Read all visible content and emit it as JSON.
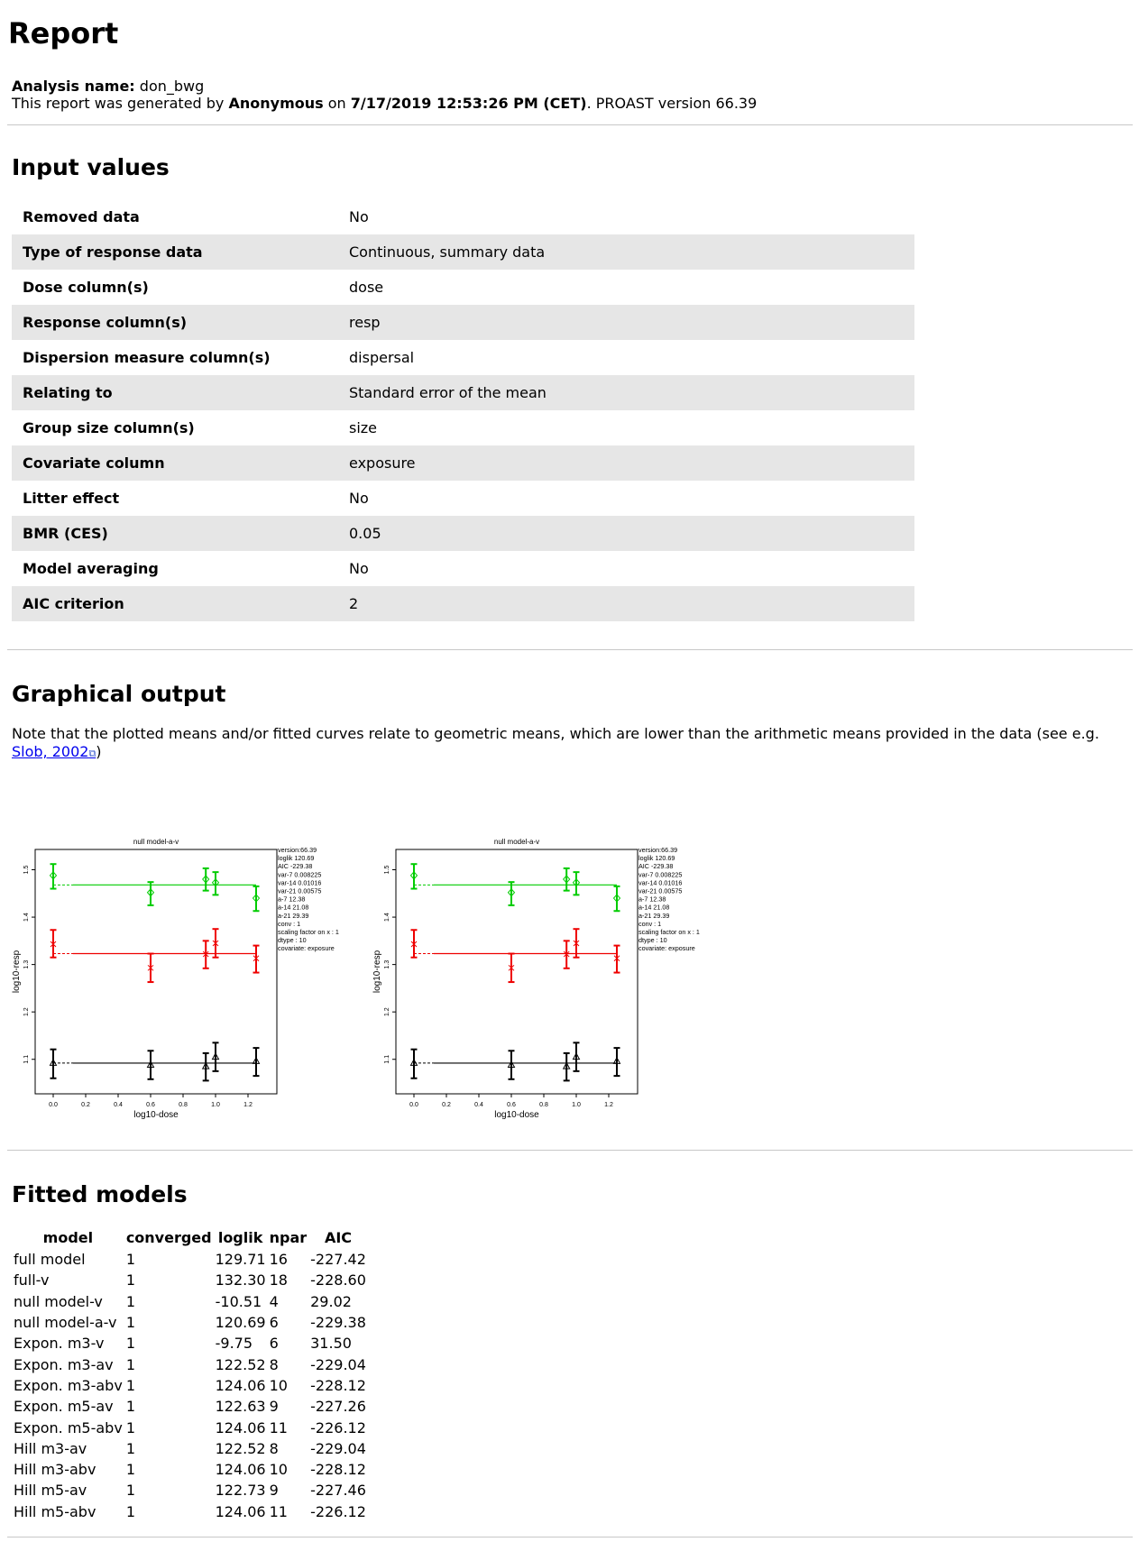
{
  "title": "Report",
  "meta": {
    "analysis_label": "Analysis name:",
    "analysis_name": "don_bwg",
    "generated_prefix": "This report was generated by",
    "author": "Anonymous",
    "on_text": "on",
    "datetime": "7/17/2019 12:53:26 PM (CET)",
    "version_text": ". PROAST version 66.39"
  },
  "input_section": {
    "heading": "Input values",
    "rows": [
      {
        "key": "Removed data",
        "value": "No"
      },
      {
        "key": "Type of response data",
        "value": "Continuous, summary data"
      },
      {
        "key": "Dose column(s)",
        "value": "dose"
      },
      {
        "key": "Response column(s)",
        "value": "resp"
      },
      {
        "key": "Dispersion measure column(s)",
        "value": "dispersal"
      },
      {
        "key": "Relating to",
        "value": "Standard error of the mean"
      },
      {
        "key": "Group size column(s)",
        "value": "size"
      },
      {
        "key": "Covariate column",
        "value": "exposure"
      },
      {
        "key": "Litter effect",
        "value": "No"
      },
      {
        "key": "BMR (CES)",
        "value": "0.05"
      },
      {
        "key": "Model averaging",
        "value": "No"
      },
      {
        "key": "AIC criterion",
        "value": "2"
      }
    ]
  },
  "graphical_section": {
    "heading": "Graphical output",
    "note": "Note that the plotted means and/or fitted curves relate to geometric means, which are lower than the arithmetic means provided in the data (see e.g.",
    "link_text": "Slob, 2002",
    "link_icon": "external-link-icon",
    "note_end": ")"
  },
  "chart_data": [
    {
      "type": "scatter",
      "title": "null model-a-v",
      "xlabel": "log10-dose",
      "ylabel": "log10-resp",
      "xlim": [
        0,
        1.3
      ],
      "ylim": [
        1.05,
        1.52
      ],
      "xticks": [
        "0.0",
        "0.2",
        "0.4",
        "0.6",
        "0.8",
        "1.0",
        "1.2"
      ],
      "yticks": [
        "1.1",
        "1.2",
        "1.3",
        "1.4",
        "1.5"
      ],
      "grid": false,
      "series": [
        {
          "color": "#00cc00",
          "marker": "diamond",
          "fit": 1.468,
          "points": [
            {
              "x": 0.0,
              "y": 1.488,
              "lo": 1.46,
              "hi": 1.512
            },
            {
              "x": 0.6,
              "y": 1.452,
              "lo": 1.425,
              "hi": 1.474
            },
            {
              "x": 0.94,
              "y": 1.48,
              "lo": 1.456,
              "hi": 1.503
            },
            {
              "x": 1.0,
              "y": 1.473,
              "lo": 1.447,
              "hi": 1.495
            },
            {
              "x": 1.25,
              "y": 1.44,
              "lo": 1.413,
              "hi": 1.465
            }
          ]
        },
        {
          "color": "#ee0000",
          "marker": "x",
          "fit": 1.323,
          "points": [
            {
              "x": 0.0,
              "y": 1.343,
              "lo": 1.315,
              "hi": 1.373
            },
            {
              "x": 0.6,
              "y": 1.293,
              "lo": 1.263,
              "hi": 1.323
            },
            {
              "x": 0.94,
              "y": 1.322,
              "lo": 1.292,
              "hi": 1.35
            },
            {
              "x": 1.0,
              "y": 1.345,
              "lo": 1.315,
              "hi": 1.375
            },
            {
              "x": 1.25,
              "y": 1.313,
              "lo": 1.283,
              "hi": 1.34
            }
          ]
        },
        {
          "color": "#000000",
          "marker": "triangle",
          "fit": 1.092,
          "points": [
            {
              "x": 0.0,
              "y": 1.092,
              "lo": 1.06,
              "hi": 1.121
            },
            {
              "x": 0.6,
              "y": 1.088,
              "lo": 1.058,
              "hi": 1.118
            },
            {
              "x": 0.94,
              "y": 1.085,
              "lo": 1.055,
              "hi": 1.113
            },
            {
              "x": 1.0,
              "y": 1.105,
              "lo": 1.075,
              "hi": 1.135
            },
            {
              "x": 1.25,
              "y": 1.096,
              "lo": 1.065,
              "hi": 1.124
            }
          ]
        }
      ],
      "annotation": [
        "version:66.39",
        "loglik  120.69",
        "AIC   -229.38",
        "var-7   0.008225",
        "var-14  0.01016",
        "var-21  0.00575",
        "a-7   12.38",
        "a-14   21.08",
        "a-21   29.39",
        "conv : 1",
        "scaling factor on x : 1",
        "dtype : 10",
        "covariate: exposure"
      ]
    },
    {
      "type": "scatter",
      "title": "null model-a-v",
      "xlabel": "log10-dose",
      "ylabel": "log10-resp",
      "xlim": [
        0,
        1.3
      ],
      "ylim": [
        1.05,
        1.52
      ],
      "xticks": [
        "0.0",
        "0.2",
        "0.4",
        "0.6",
        "0.8",
        "1.0",
        "1.2"
      ],
      "yticks": [
        "1.1",
        "1.2",
        "1.3",
        "1.4",
        "1.5"
      ],
      "grid": false,
      "series": [
        {
          "color": "#00cc00",
          "marker": "diamond",
          "fit": 1.468,
          "points": [
            {
              "x": 0.0,
              "y": 1.488,
              "lo": 1.46,
              "hi": 1.512
            },
            {
              "x": 0.6,
              "y": 1.452,
              "lo": 1.425,
              "hi": 1.474
            },
            {
              "x": 0.94,
              "y": 1.48,
              "lo": 1.456,
              "hi": 1.503
            },
            {
              "x": 1.0,
              "y": 1.473,
              "lo": 1.447,
              "hi": 1.495
            },
            {
              "x": 1.25,
              "y": 1.44,
              "lo": 1.413,
              "hi": 1.465
            }
          ]
        },
        {
          "color": "#ee0000",
          "marker": "x",
          "fit": 1.323,
          "points": [
            {
              "x": 0.0,
              "y": 1.343,
              "lo": 1.315,
              "hi": 1.373
            },
            {
              "x": 0.6,
              "y": 1.293,
              "lo": 1.263,
              "hi": 1.323
            },
            {
              "x": 0.94,
              "y": 1.322,
              "lo": 1.292,
              "hi": 1.35
            },
            {
              "x": 1.0,
              "y": 1.345,
              "lo": 1.315,
              "hi": 1.375
            },
            {
              "x": 1.25,
              "y": 1.313,
              "lo": 1.283,
              "hi": 1.34
            }
          ]
        },
        {
          "color": "#000000",
          "marker": "triangle",
          "fit": 1.092,
          "points": [
            {
              "x": 0.0,
              "y": 1.092,
              "lo": 1.06,
              "hi": 1.121
            },
            {
              "x": 0.6,
              "y": 1.088,
              "lo": 1.058,
              "hi": 1.118
            },
            {
              "x": 0.94,
              "y": 1.085,
              "lo": 1.055,
              "hi": 1.113
            },
            {
              "x": 1.0,
              "y": 1.105,
              "lo": 1.075,
              "hi": 1.135
            },
            {
              "x": 1.25,
              "y": 1.096,
              "lo": 1.065,
              "hi": 1.124
            }
          ]
        }
      ],
      "annotation": [
        "version:66.39",
        "loglik  120.69",
        "AIC   -229.38",
        "var-7   0.008225",
        "var-14  0.01016",
        "var-21  0.00575",
        "a-7   12.38",
        "a-14   21.08",
        "a-21   29.39",
        "conv : 1",
        "scaling factor on x : 1",
        "dtype : 10",
        "covariate: exposure"
      ]
    }
  ],
  "models_section": {
    "heading": "Fitted models",
    "columns": [
      "model",
      "converged",
      "loglik",
      "npar",
      "AIC"
    ],
    "rows": [
      [
        "full model",
        "1",
        "129.71",
        "16",
        "-227.42"
      ],
      [
        "full-v",
        "1",
        "132.30",
        "18",
        "-228.60"
      ],
      [
        "null model-v",
        "1",
        "-10.51",
        "4",
        "29.02"
      ],
      [
        "null model-a-v",
        "1",
        "120.69",
        "6",
        "-229.38"
      ],
      [
        "Expon. m3-v",
        "1",
        "-9.75",
        "6",
        "31.50"
      ],
      [
        "Expon. m3-av",
        "1",
        "122.52",
        "8",
        "-229.04"
      ],
      [
        "Expon. m3-abv",
        "1",
        "124.06",
        "10",
        "-228.12"
      ],
      [
        "Expon. m5-av",
        "1",
        "122.63",
        "9",
        "-227.26"
      ],
      [
        "Expon. m5-abv",
        "1",
        "124.06",
        "11",
        "-226.12"
      ],
      [
        "Hill m3-av",
        "1",
        "122.52",
        "8",
        "-229.04"
      ],
      [
        "Hill m3-abv",
        "1",
        "124.06",
        "10",
        "-228.12"
      ],
      [
        "Hill m5-av",
        "1",
        "122.73",
        "9",
        "-227.46"
      ],
      [
        "Hill m5-abv",
        "1",
        "124.06",
        "11",
        "-226.12"
      ]
    ]
  }
}
